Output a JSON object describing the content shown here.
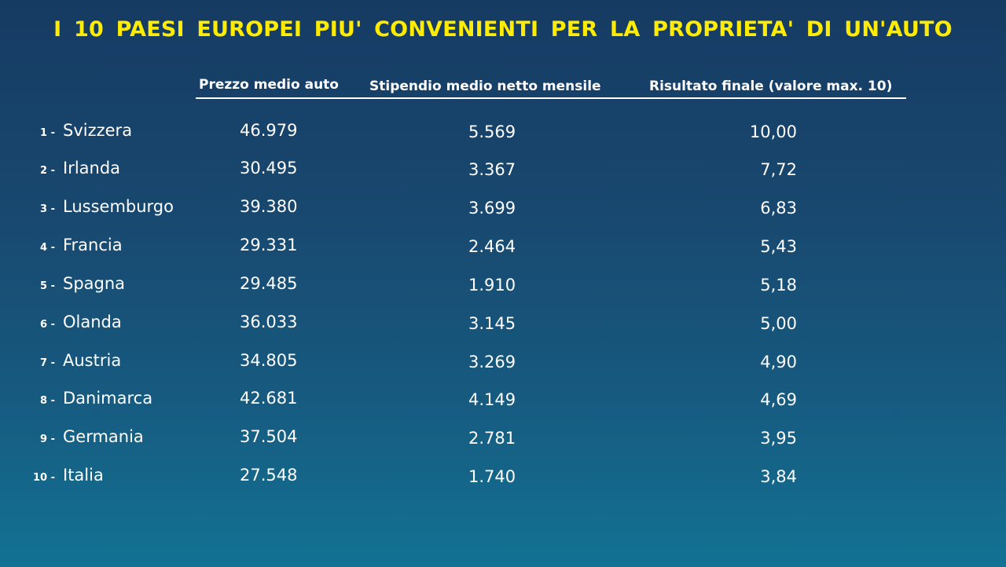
{
  "title": "I 10 PAESI EUROPEI PIU' CONVENIENTI PER LA PROPRIETA' DI UN'AUTO",
  "headers": {
    "price": "Prezzo medio auto",
    "salary": "Stipendio medio netto mensile",
    "score": "Risultato finale (valore max. 10)"
  },
  "rows": [
    {
      "rank": "1 -",
      "country": "Svizzera",
      "price": "46.979",
      "salary": "5.569",
      "score": "10,00"
    },
    {
      "rank": "2 -",
      "country": "Irlanda",
      "price": "30.495",
      "salary": "3.367",
      "score": "7,72"
    },
    {
      "rank": "3 -",
      "country": "Lussemburgo",
      "price": "39.380",
      "salary": "3.699",
      "score": "6,83"
    },
    {
      "rank": "4 -",
      "country": "Francia",
      "price": "29.331",
      "salary": "2.464",
      "score": "5,43"
    },
    {
      "rank": "5 -",
      "country": "Spagna",
      "price": "29.485",
      "salary": "1.910",
      "score": "5,18"
    },
    {
      "rank": "6 -",
      "country": "Olanda",
      "price": "36.033",
      "salary": "3.145",
      "score": "5,00"
    },
    {
      "rank": "7 -",
      "country": "Austria",
      "price": "34.805",
      "salary": "3.269",
      "score": "4,90"
    },
    {
      "rank": "8 -",
      "country": "Danimarca",
      "price": "42.681",
      "salary": "4.149",
      "score": "4,69"
    },
    {
      "rank": "9 -",
      "country": "Germania",
      "price": "37.504",
      "salary": "2.781",
      "score": "3,95"
    },
    {
      "rank": "10 -",
      "country": "Italia",
      "price": "27.548",
      "salary": "1.740",
      "score": "3,84"
    }
  ],
  "colors": {
    "title": "#ffec00",
    "text": "#ffffff",
    "background_top": "#163b63",
    "background_bottom": "#127293"
  }
}
